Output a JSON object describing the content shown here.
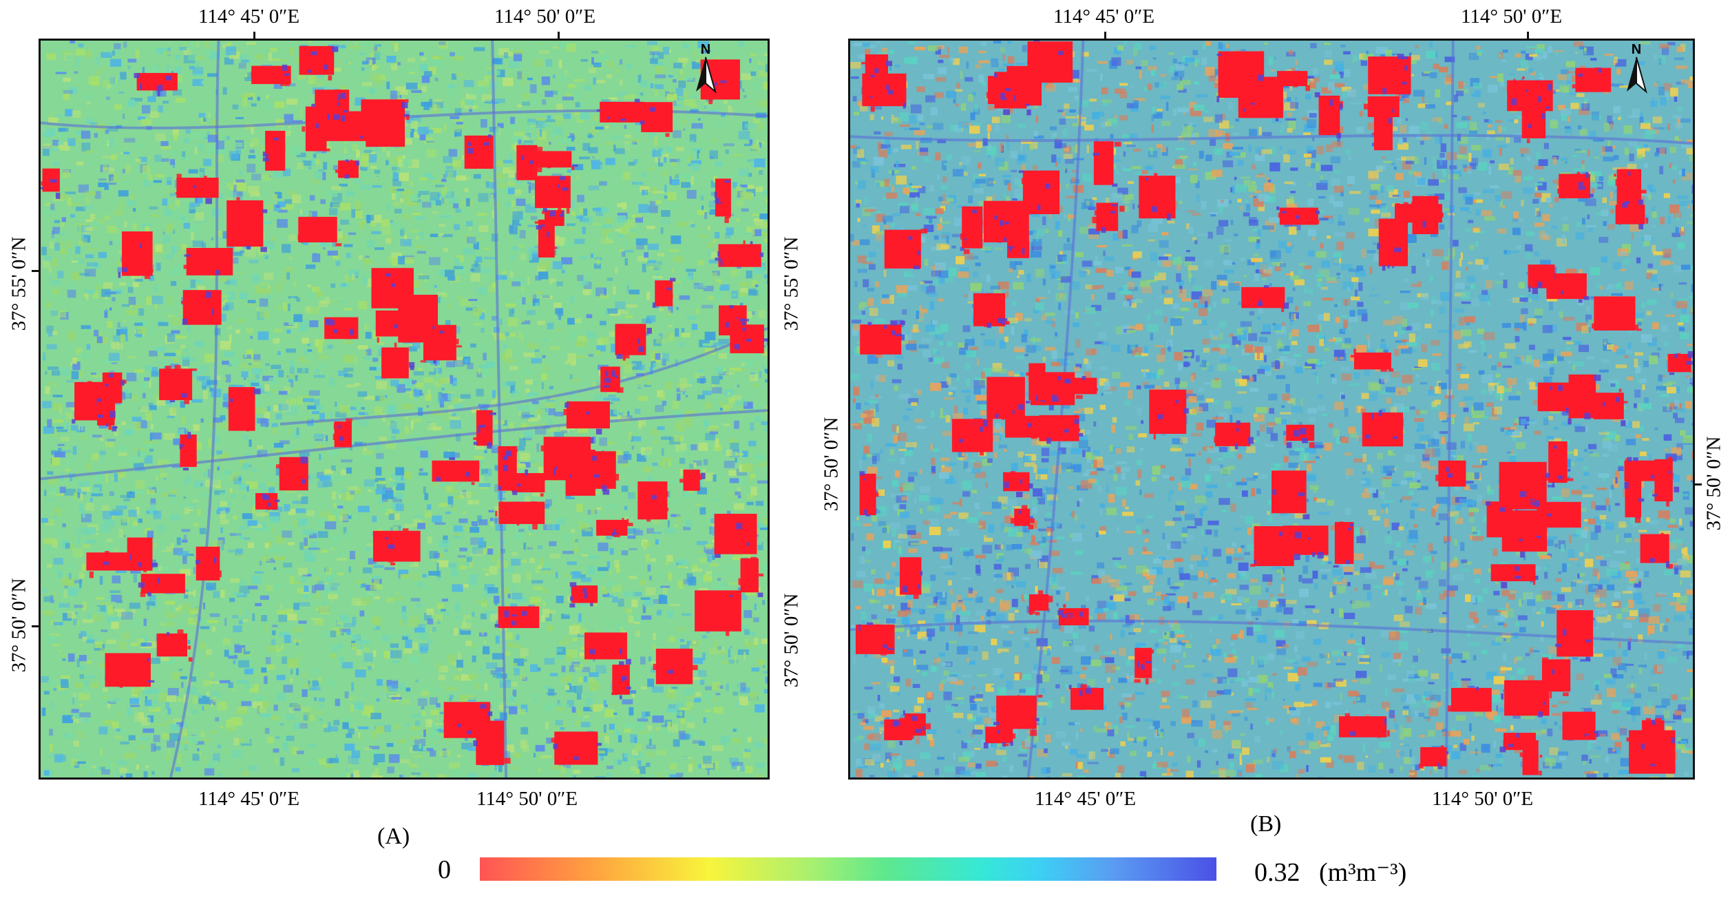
{
  "figure": {
    "panel_a": {
      "label": "(A)",
      "top_lon_labels": [
        "114° 45' 0″E",
        "114° 50' 0″E"
      ],
      "bottom_lon_labels": [
        "114° 45' 0″E",
        "114° 50' 0″E"
      ],
      "left_lat_labels": [
        "37° 55' 0″N",
        "37° 50' 0″N"
      ],
      "right_lat_labels": [
        "37° 55' 0″N",
        "37° 50' 0″N"
      ]
    },
    "panel_b": {
      "label": "(B)",
      "top_lon_labels": [
        "114° 45' 0″E",
        "114° 50' 0″E"
      ],
      "bottom_lon_labels": [
        "114° 45' 0″E",
        "114° 50' 0″E"
      ],
      "left_lat_labels": [
        "37° 50' 0″N"
      ],
      "right_lat_labels": [
        "37° 50' 0″N"
      ]
    },
    "north_arrow_label": "N",
    "colorbar": {
      "min_label": "0",
      "max_label": "0.32",
      "unit_label": "(m³m⁻³)",
      "stops": [
        "#ff5454",
        "#ffa040",
        "#f8f43c",
        "#a8f070",
        "#5ee88e",
        "#36e8d6",
        "#3cd0f4",
        "#5a9cf2",
        "#4a50e6"
      ]
    },
    "colors": {
      "built_up": "#ff1a2a",
      "field_mid_a": "#7ddc8c",
      "field_mid_b": "#6bb8c8",
      "frame": "#111111"
    }
  }
}
